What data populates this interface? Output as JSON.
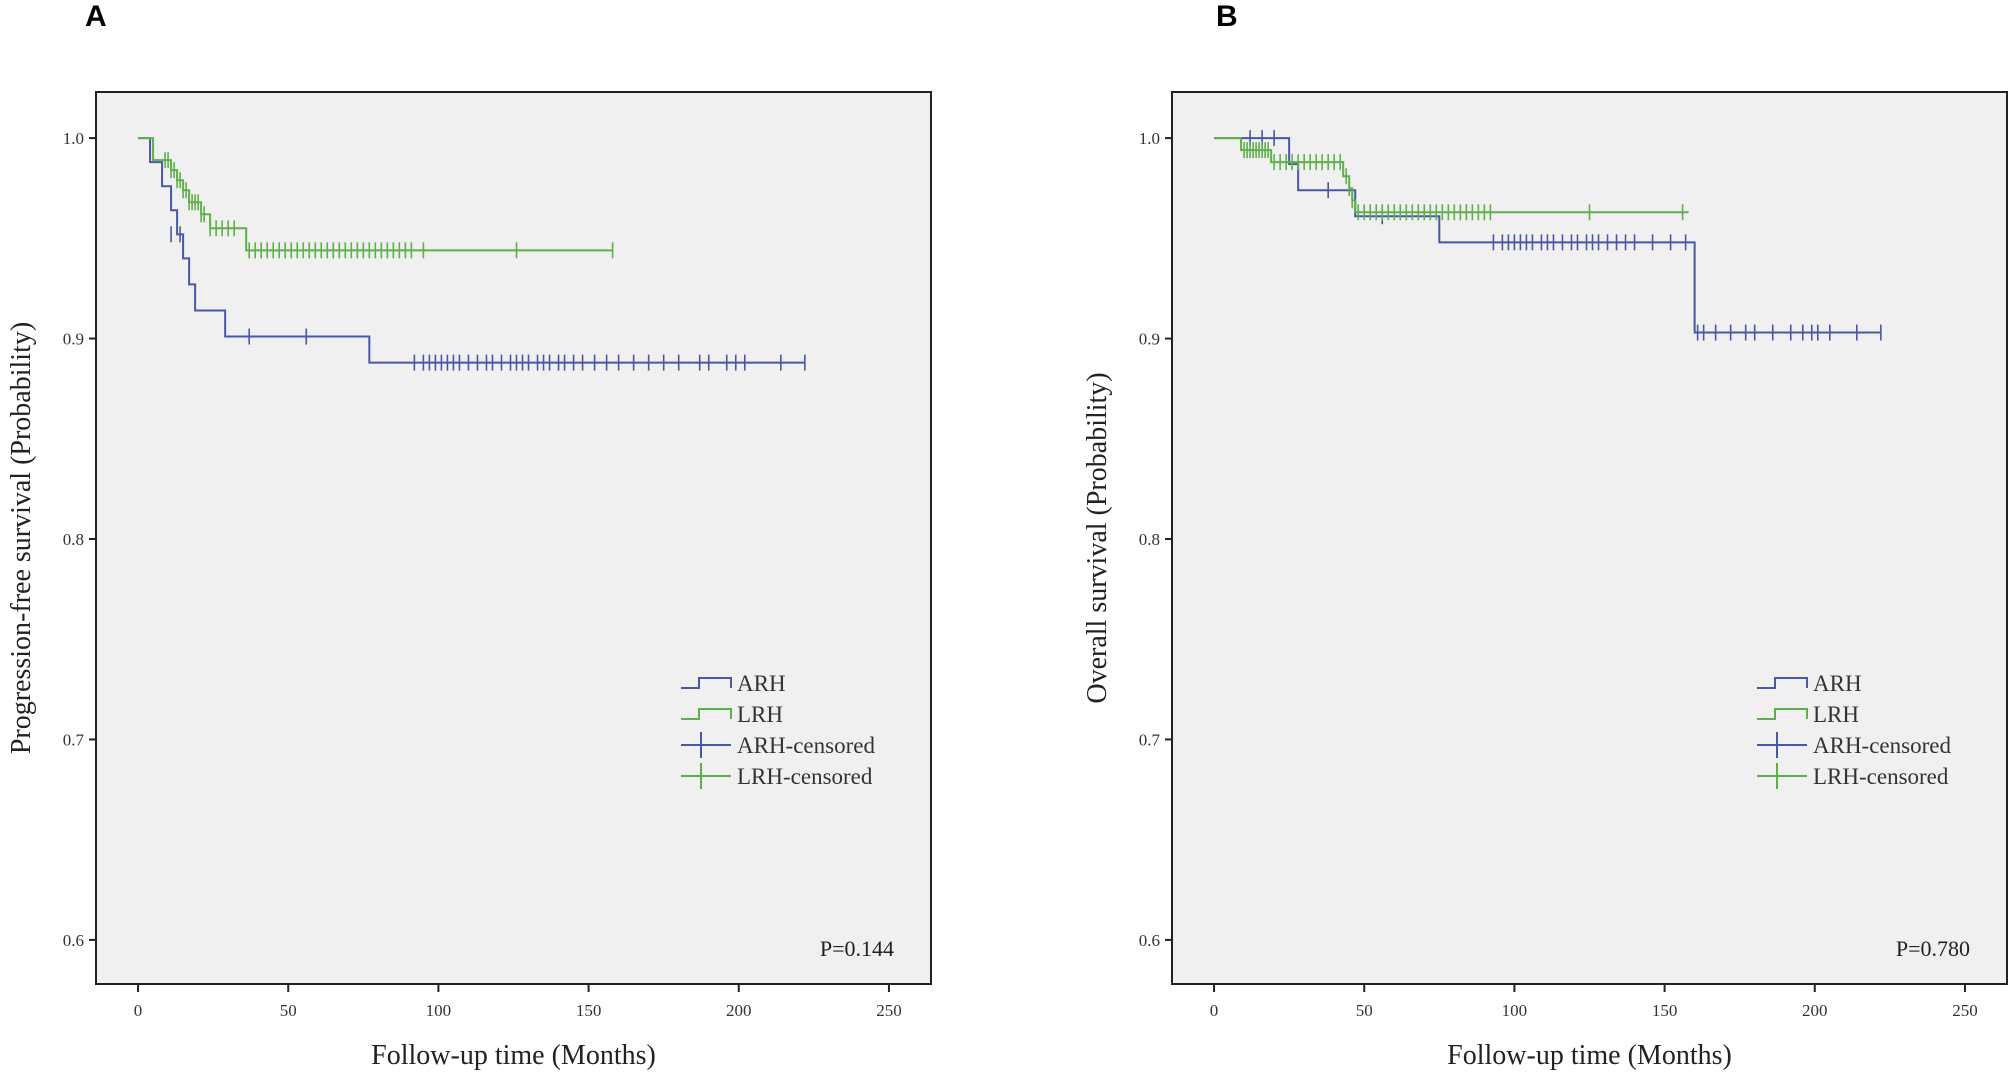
{
  "chart_data": [
    {
      "panel": "A",
      "type": "line",
      "title": "",
      "xlabel": "Follow-up time (Months)",
      "ylabel": "Progression-free survival (Probability)",
      "xlim": [
        -14,
        264
      ],
      "ylim": [
        0.578,
        1.023
      ],
      "xticks": [
        0,
        50,
        100,
        150,
        200,
        250
      ],
      "xtick_labels": [
        "0",
        "50",
        "100",
        "150",
        "200",
        "250"
      ],
      "yticks": [
        0.6,
        0.7,
        0.8,
        0.9,
        1.0
      ],
      "ytick_labels": [
        "0.6",
        "0.7",
        "0.8",
        "0.9",
        "1.0"
      ],
      "p_value": "P=0.144",
      "legend": [
        {
          "label": "ARH",
          "kind": "line",
          "color": "#4A57A6"
        },
        {
          "label": "LRH",
          "kind": "line",
          "color": "#5DB04A"
        },
        {
          "label": "ARH-censored",
          "kind": "censor",
          "color": "#4A57A6"
        },
        {
          "label": "LRH-censored",
          "kind": "censor",
          "color": "#5DB04A"
        }
      ],
      "series": [
        {
          "name": "ARH",
          "color": "#4A57A6",
          "steps": [
            [
              0,
              1.0
            ],
            [
              4,
              0.988
            ],
            [
              8,
              0.976
            ],
            [
              11,
              0.964
            ],
            [
              13,
              0.952
            ],
            [
              15,
              0.94
            ],
            [
              17,
              0.927
            ],
            [
              19,
              0.914
            ],
            [
              29,
              0.901
            ],
            [
              77,
              0.888
            ],
            [
              222,
              0.888
            ]
          ],
          "censored": [
            [
              11,
              0.952
            ],
            [
              14,
              0.952
            ],
            [
              37,
              0.901
            ],
            [
              56,
              0.901
            ],
            [
              92,
              0.888
            ],
            [
              95,
              0.888
            ],
            [
              97,
              0.888
            ],
            [
              99,
              0.888
            ],
            [
              101,
              0.888
            ],
            [
              103,
              0.888
            ],
            [
              105,
              0.888
            ],
            [
              107,
              0.888
            ],
            [
              110,
              0.888
            ],
            [
              113,
              0.888
            ],
            [
              116,
              0.888
            ],
            [
              118,
              0.888
            ],
            [
              121,
              0.888
            ],
            [
              124,
              0.888
            ],
            [
              126,
              0.888
            ],
            [
              128,
              0.888
            ],
            [
              130,
              0.888
            ],
            [
              133,
              0.888
            ],
            [
              135,
              0.888
            ],
            [
              137,
              0.888
            ],
            [
              140,
              0.888
            ],
            [
              142,
              0.888
            ],
            [
              145,
              0.888
            ],
            [
              148,
              0.888
            ],
            [
              152,
              0.888
            ],
            [
              156,
              0.888
            ],
            [
              160,
              0.888
            ],
            [
              165,
              0.888
            ],
            [
              170,
              0.888
            ],
            [
              175,
              0.888
            ],
            [
              180,
              0.888
            ],
            [
              187,
              0.888
            ],
            [
              190,
              0.888
            ],
            [
              196,
              0.888
            ],
            [
              199,
              0.888
            ],
            [
              202,
              0.888
            ],
            [
              214,
              0.888
            ],
            [
              222,
              0.888
            ]
          ]
        },
        {
          "name": "LRH",
          "color": "#5DB04A",
          "steps": [
            [
              0,
              1.0
            ],
            [
              5,
              0.989
            ],
            [
              11,
              0.984
            ],
            [
              13,
              0.979
            ],
            [
              15,
              0.974
            ],
            [
              17,
              0.968
            ],
            [
              21,
              0.962
            ],
            [
              24,
              0.955
            ],
            [
              36,
              0.944
            ],
            [
              158,
              0.944
            ]
          ],
          "censored": [
            [
              9,
              0.989
            ],
            [
              10,
              0.989
            ],
            [
              11,
              0.984
            ],
            [
              12,
              0.984
            ],
            [
              13,
              0.979
            ],
            [
              14,
              0.979
            ],
            [
              15,
              0.974
            ],
            [
              16,
              0.974
            ],
            [
              17,
              0.968
            ],
            [
              18,
              0.968
            ],
            [
              19,
              0.968
            ],
            [
              20,
              0.968
            ],
            [
              21,
              0.962
            ],
            [
              22,
              0.962
            ],
            [
              24,
              0.955
            ],
            [
              26,
              0.955
            ],
            [
              28,
              0.955
            ],
            [
              30,
              0.955
            ],
            [
              32,
              0.955
            ],
            [
              37,
              0.944
            ],
            [
              39,
              0.944
            ],
            [
              41,
              0.944
            ],
            [
              43,
              0.944
            ],
            [
              45,
              0.944
            ],
            [
              47,
              0.944
            ],
            [
              49,
              0.944
            ],
            [
              51,
              0.944
            ],
            [
              53,
              0.944
            ],
            [
              55,
              0.944
            ],
            [
              57,
              0.944
            ],
            [
              59,
              0.944
            ],
            [
              61,
              0.944
            ],
            [
              63,
              0.944
            ],
            [
              65,
              0.944
            ],
            [
              67,
              0.944
            ],
            [
              69,
              0.944
            ],
            [
              71,
              0.944
            ],
            [
              73,
              0.944
            ],
            [
              75,
              0.944
            ],
            [
              77,
              0.944
            ],
            [
              79,
              0.944
            ],
            [
              81,
              0.944
            ],
            [
              83,
              0.944
            ],
            [
              85,
              0.944
            ],
            [
              87,
              0.944
            ],
            [
              89,
              0.944
            ],
            [
              91,
              0.944
            ],
            [
              95,
              0.944
            ],
            [
              126,
              0.944
            ],
            [
              158,
              0.944
            ]
          ]
        }
      ]
    },
    {
      "panel": "B",
      "type": "line",
      "title": "",
      "xlabel": "Follow-up time (Months)",
      "ylabel": "Overall survival (Probability)",
      "xlim": [
        -14,
        264
      ],
      "ylim": [
        0.578,
        1.023
      ],
      "xticks": [
        0,
        50,
        100,
        150,
        200,
        250
      ],
      "xtick_labels": [
        "0",
        "50",
        "100",
        "150",
        "200",
        "250"
      ],
      "yticks": [
        0.6,
        0.7,
        0.8,
        0.9,
        1.0
      ],
      "ytick_labels": [
        "0.6",
        "0.7",
        "0.8",
        "0.9",
        "1.0"
      ],
      "p_value": "P=0.780",
      "legend": [
        {
          "label": "ARH",
          "kind": "line",
          "color": "#4A57A6"
        },
        {
          "label": "LRH",
          "kind": "line",
          "color": "#5DB04A"
        },
        {
          "label": "ARH-censored",
          "kind": "censor",
          "color": "#4A57A6"
        },
        {
          "label": "LRH-censored",
          "kind": "censor",
          "color": "#5DB04A"
        }
      ],
      "series": [
        {
          "name": "ARH",
          "color": "#4A57A6",
          "steps": [
            [
              0,
              1.0
            ],
            [
              25,
              0.987
            ],
            [
              28,
              0.974
            ],
            [
              47,
              0.961
            ],
            [
              75,
              0.948
            ],
            [
              160,
              0.903
            ],
            [
              222,
              0.903
            ]
          ],
          "censored": [
            [
              12,
              1.0
            ],
            [
              16,
              1.0
            ],
            [
              20,
              1.0
            ],
            [
              38,
              0.974
            ],
            [
              56,
              0.961
            ],
            [
              93,
              0.948
            ],
            [
              96,
              0.948
            ],
            [
              98,
              0.948
            ],
            [
              100,
              0.948
            ],
            [
              102,
              0.948
            ],
            [
              104,
              0.948
            ],
            [
              106,
              0.948
            ],
            [
              109,
              0.948
            ],
            [
              111,
              0.948
            ],
            [
              113,
              0.948
            ],
            [
              116,
              0.948
            ],
            [
              119,
              0.948
            ],
            [
              121,
              0.948
            ],
            [
              124,
              0.948
            ],
            [
              126,
              0.948
            ],
            [
              128,
              0.948
            ],
            [
              131,
              0.948
            ],
            [
              134,
              0.948
            ],
            [
              137,
              0.948
            ],
            [
              140,
              0.948
            ],
            [
              146,
              0.948
            ],
            [
              152,
              0.948
            ],
            [
              157,
              0.948
            ],
            [
              161,
              0.903
            ],
            [
              163,
              0.903
            ],
            [
              167,
              0.903
            ],
            [
              172,
              0.903
            ],
            [
              177,
              0.903
            ],
            [
              180,
              0.903
            ],
            [
              186,
              0.903
            ],
            [
              192,
              0.903
            ],
            [
              196,
              0.903
            ],
            [
              199,
              0.903
            ],
            [
              201,
              0.903
            ],
            [
              205,
              0.903
            ],
            [
              214,
              0.903
            ],
            [
              222,
              0.903
            ]
          ]
        },
        {
          "name": "LRH",
          "color": "#5DB04A",
          "steps": [
            [
              0,
              1.0
            ],
            [
              9,
              0.994
            ],
            [
              19,
              0.988
            ],
            [
              43,
              0.981
            ],
            [
              45,
              0.975
            ],
            [
              46,
              0.969
            ],
            [
              47,
              0.963
            ],
            [
              158,
              0.963
            ]
          ],
          "censored": [
            [
              10,
              0.994
            ],
            [
              11,
              0.994
            ],
            [
              12,
              0.994
            ],
            [
              13,
              0.994
            ],
            [
              14,
              0.994
            ],
            [
              15,
              0.994
            ],
            [
              16,
              0.994
            ],
            [
              17,
              0.994
            ],
            [
              18,
              0.994
            ],
            [
              20,
              0.988
            ],
            [
              22,
              0.988
            ],
            [
              24,
              0.988
            ],
            [
              26,
              0.988
            ],
            [
              28,
              0.988
            ],
            [
              30,
              0.988
            ],
            [
              32,
              0.988
            ],
            [
              34,
              0.988
            ],
            [
              36,
              0.988
            ],
            [
              38,
              0.988
            ],
            [
              40,
              0.988
            ],
            [
              42,
              0.988
            ],
            [
              44,
              0.981
            ],
            [
              45,
              0.975
            ],
            [
              46,
              0.969
            ],
            [
              48,
              0.963
            ],
            [
              50,
              0.963
            ],
            [
              52,
              0.963
            ],
            [
              54,
              0.963
            ],
            [
              56,
              0.963
            ],
            [
              58,
              0.963
            ],
            [
              60,
              0.963
            ],
            [
              62,
              0.963
            ],
            [
              64,
              0.963
            ],
            [
              66,
              0.963
            ],
            [
              68,
              0.963
            ],
            [
              70,
              0.963
            ],
            [
              72,
              0.963
            ],
            [
              74,
              0.963
            ],
            [
              76,
              0.963
            ],
            [
              78,
              0.963
            ],
            [
              80,
              0.963
            ],
            [
              82,
              0.963
            ],
            [
              84,
              0.963
            ],
            [
              86,
              0.963
            ],
            [
              88,
              0.963
            ],
            [
              90,
              0.963
            ],
            [
              92,
              0.963
            ],
            [
              125,
              0.963
            ],
            [
              156,
              0.963
            ]
          ]
        }
      ]
    }
  ]
}
